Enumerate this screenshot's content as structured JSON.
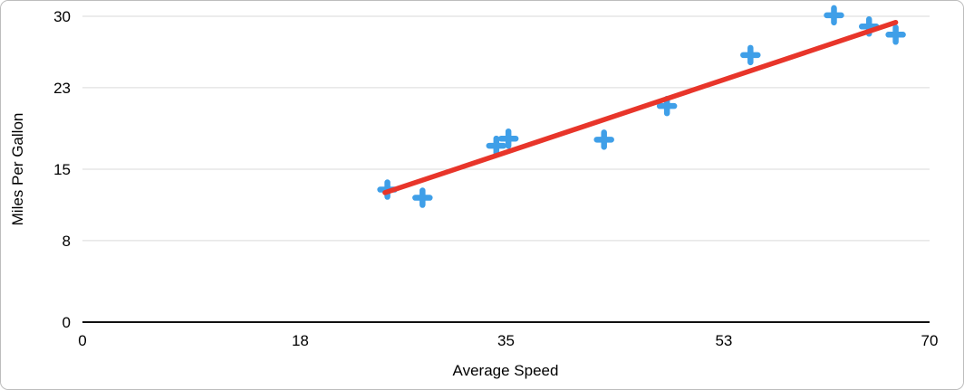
{
  "chart_data": {
    "type": "scatter",
    "title": "",
    "xlabel": "Average Speed",
    "ylabel": "Miles Per Gallon",
    "xlim": [
      0,
      70
    ],
    "ylim": [
      0,
      30
    ],
    "x_ticks": [
      0,
      18,
      35,
      53,
      70
    ],
    "y_ticks": [
      0,
      8,
      15,
      23,
      30
    ],
    "grid": "horizontal",
    "legend": "none",
    "marker": {
      "shape": "plus",
      "color": "#3f9fe8",
      "size": 16
    },
    "points": [
      {
        "x": 25.2,
        "y": 13.0
      },
      {
        "x": 28.1,
        "y": 12.2
      },
      {
        "x": 34.2,
        "y": 17.3
      },
      {
        "x": 35.2,
        "y": 18.0
      },
      {
        "x": 43.1,
        "y": 17.9
      },
      {
        "x": 48.3,
        "y": 21.2
      },
      {
        "x": 55.2,
        "y": 26.2
      },
      {
        "x": 62.1,
        "y": 30.1
      },
      {
        "x": 65.0,
        "y": 29.0
      },
      {
        "x": 67.2,
        "y": 28.2
      }
    ],
    "trendline": {
      "color": "#e8352a",
      "x1": 25.0,
      "y1": 12.7,
      "x2": 67.2,
      "y2": 29.4
    }
  },
  "colors": {
    "gridline": "#d9d9d9",
    "axis_line": "#111111",
    "text": "#000000",
    "frame_border": "#bdbdbd",
    "background": "#ffffff"
  }
}
